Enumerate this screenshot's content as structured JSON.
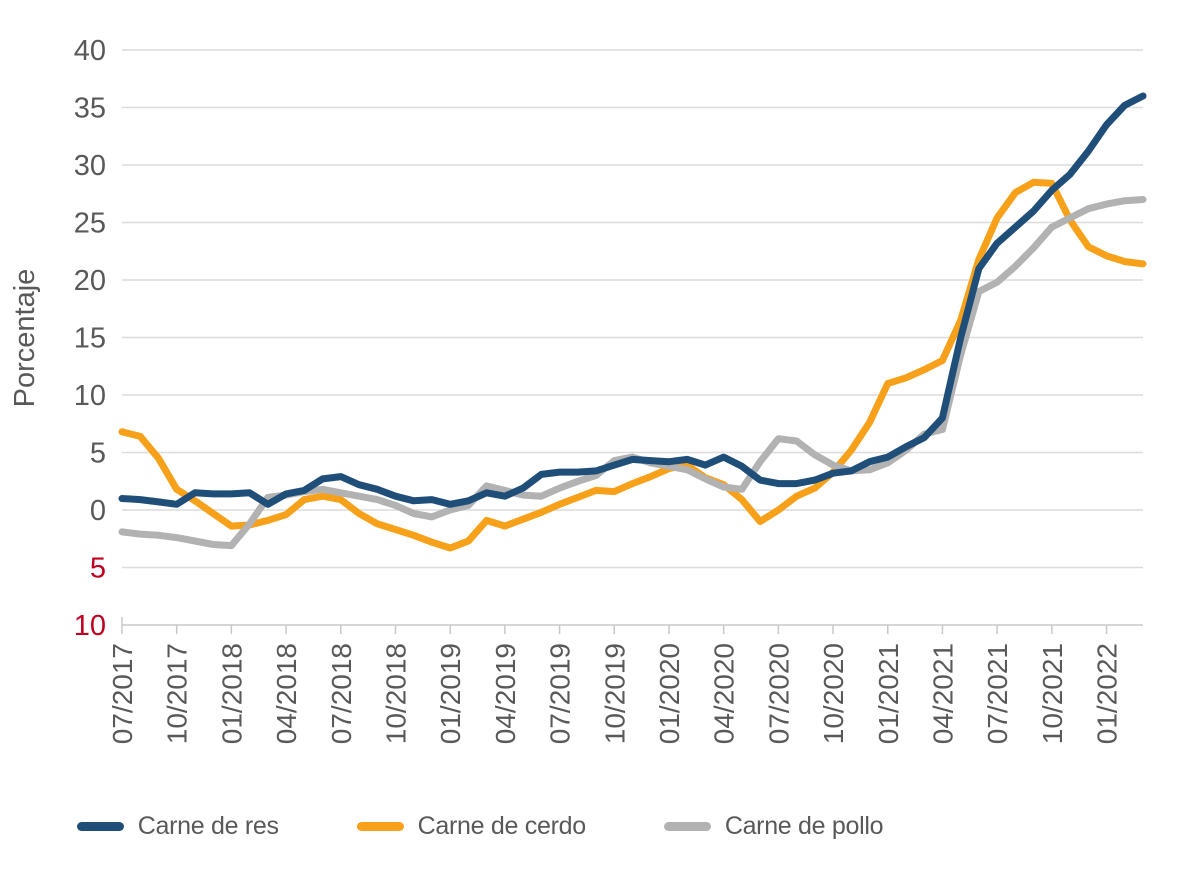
{
  "chart_data": {
    "type": "line",
    "title": "",
    "ylabel": "Porcentaje",
    "ylim": [
      -10,
      40
    ],
    "grid": "horizontal",
    "legend_position": "bottom",
    "x_tick_every": 3,
    "x": [
      "07/2017",
      "08/2017",
      "09/2017",
      "10/2017",
      "11/2017",
      "12/2017",
      "01/2018",
      "02/2018",
      "03/2018",
      "04/2018",
      "05/2018",
      "06/2018",
      "07/2018",
      "08/2018",
      "09/2018",
      "10/2018",
      "11/2018",
      "12/2018",
      "01/2019",
      "02/2019",
      "03/2019",
      "04/2019",
      "05/2019",
      "06/2019",
      "07/2019",
      "08/2019",
      "09/2019",
      "10/2019",
      "11/2019",
      "12/2019",
      "01/2020",
      "02/2020",
      "03/2020",
      "04/2020",
      "05/2020",
      "06/2020",
      "07/2020",
      "08/2020",
      "09/2020",
      "10/2020",
      "11/2020",
      "12/2020",
      "01/2021",
      "02/2021",
      "03/2021",
      "04/2021",
      "05/2021",
      "06/2021",
      "07/2021",
      "08/2021",
      "09/2021",
      "10/2021",
      "11/2021",
      "12/2021",
      "01/2022",
      "02/2022",
      "03/2022"
    ],
    "x_tick_labels": [
      "07/2017",
      "10/2017",
      "01/2018",
      "04/2018",
      "07/2018",
      "10/2018",
      "01/2019",
      "04/2019",
      "07/2019",
      "10/2019",
      "01/2020",
      "04/2020",
      "07/2020",
      "10/2020",
      "01/2021",
      "04/2021",
      "07/2021",
      "10/2021",
      "01/2022"
    ],
    "y_ticks": [
      {
        "label": "40",
        "value": 40,
        "negative": false
      },
      {
        "label": "35",
        "value": 35,
        "negative": false
      },
      {
        "label": "30",
        "value": 30,
        "negative": false
      },
      {
        "label": "25",
        "value": 25,
        "negative": false
      },
      {
        "label": "20",
        "value": 20,
        "negative": false
      },
      {
        "label": "15",
        "value": 15,
        "negative": false
      },
      {
        "label": "10",
        "value": 10,
        "negative": false
      },
      {
        "label": "5",
        "value": 5,
        "negative": false
      },
      {
        "label": "0",
        "value": 0,
        "negative": false
      },
      {
        "label": "5",
        "value": -5,
        "negative": true
      },
      {
        "label": "10",
        "value": -10,
        "negative": true
      }
    ],
    "series": [
      {
        "name": "Carne de res",
        "color": "#1F4E79",
        "values": [
          1.0,
          0.9,
          0.7,
          0.5,
          1.5,
          1.4,
          1.4,
          1.5,
          0.5,
          1.4,
          1.7,
          2.7,
          2.9,
          2.2,
          1.8,
          1.2,
          0.8,
          0.9,
          0.5,
          0.8,
          1.5,
          1.2,
          1.9,
          3.1,
          3.3,
          3.3,
          3.4,
          3.9,
          4.4,
          4.3,
          4.2,
          4.4,
          3.9,
          4.6,
          3.8,
          2.6,
          2.3,
          2.3,
          2.6,
          3.2,
          3.4,
          4.2,
          4.6,
          5.5,
          6.3,
          8.0,
          15.0,
          21.0,
          23.2,
          24.6,
          26.0,
          27.8,
          29.2,
          31.2,
          33.5,
          35.2,
          36.0
        ]
      },
      {
        "name": "Carne de cerdo",
        "color": "#F7A11A",
        "values": [
          6.8,
          6.4,
          4.5,
          1.8,
          0.8,
          -0.3,
          -1.4,
          -1.3,
          -0.9,
          -0.4,
          0.9,
          1.2,
          0.9,
          -0.3,
          -1.2,
          -1.7,
          -2.2,
          -2.8,
          -3.3,
          -2.7,
          -0.9,
          -1.4,
          -0.8,
          -0.2,
          0.5,
          1.1,
          1.7,
          1.6,
          2.3,
          2.9,
          3.6,
          3.9,
          2.8,
          2.2,
          0.9,
          -1.0,
          0.0,
          1.2,
          1.9,
          3.3,
          5.2,
          7.6,
          11.0,
          11.5,
          12.2,
          13.0,
          16.5,
          21.8,
          25.4,
          27.6,
          28.5,
          28.4,
          25.2,
          22.9,
          22.1,
          21.6,
          21.4
        ]
      },
      {
        "name": "Carne de pollo",
        "color": "#B2B2B2",
        "values": [
          -1.9,
          -2.1,
          -2.2,
          -2.4,
          -2.7,
          -3.0,
          -3.1,
          -1.2,
          1.1,
          1.3,
          1.6,
          1.8,
          1.5,
          1.2,
          0.9,
          0.4,
          -0.3,
          -0.6,
          0.0,
          0.4,
          2.1,
          1.7,
          1.3,
          1.2,
          1.9,
          2.5,
          3.0,
          4.3,
          4.6,
          4.1,
          3.8,
          3.5,
          2.7,
          2.0,
          1.8,
          4.2,
          6.2,
          6.0,
          4.8,
          3.9,
          3.4,
          3.5,
          4.1,
          5.2,
          6.6,
          7.0,
          13.5,
          19.0,
          19.8,
          21.2,
          22.8,
          24.6,
          25.4,
          26.2,
          26.6,
          26.9,
          27.0
        ]
      }
    ]
  },
  "colors": {
    "axis_text": "#595959",
    "negative_tick_text": "#C00020",
    "gridline": "#DCDCDC",
    "axis_line": "#C8C8C8",
    "background": "#FFFFFF"
  },
  "legend": {
    "items": [
      {
        "label": "Carne de res"
      },
      {
        "label": "Carne de cerdo"
      },
      {
        "label": "Carne de pollo"
      }
    ]
  }
}
